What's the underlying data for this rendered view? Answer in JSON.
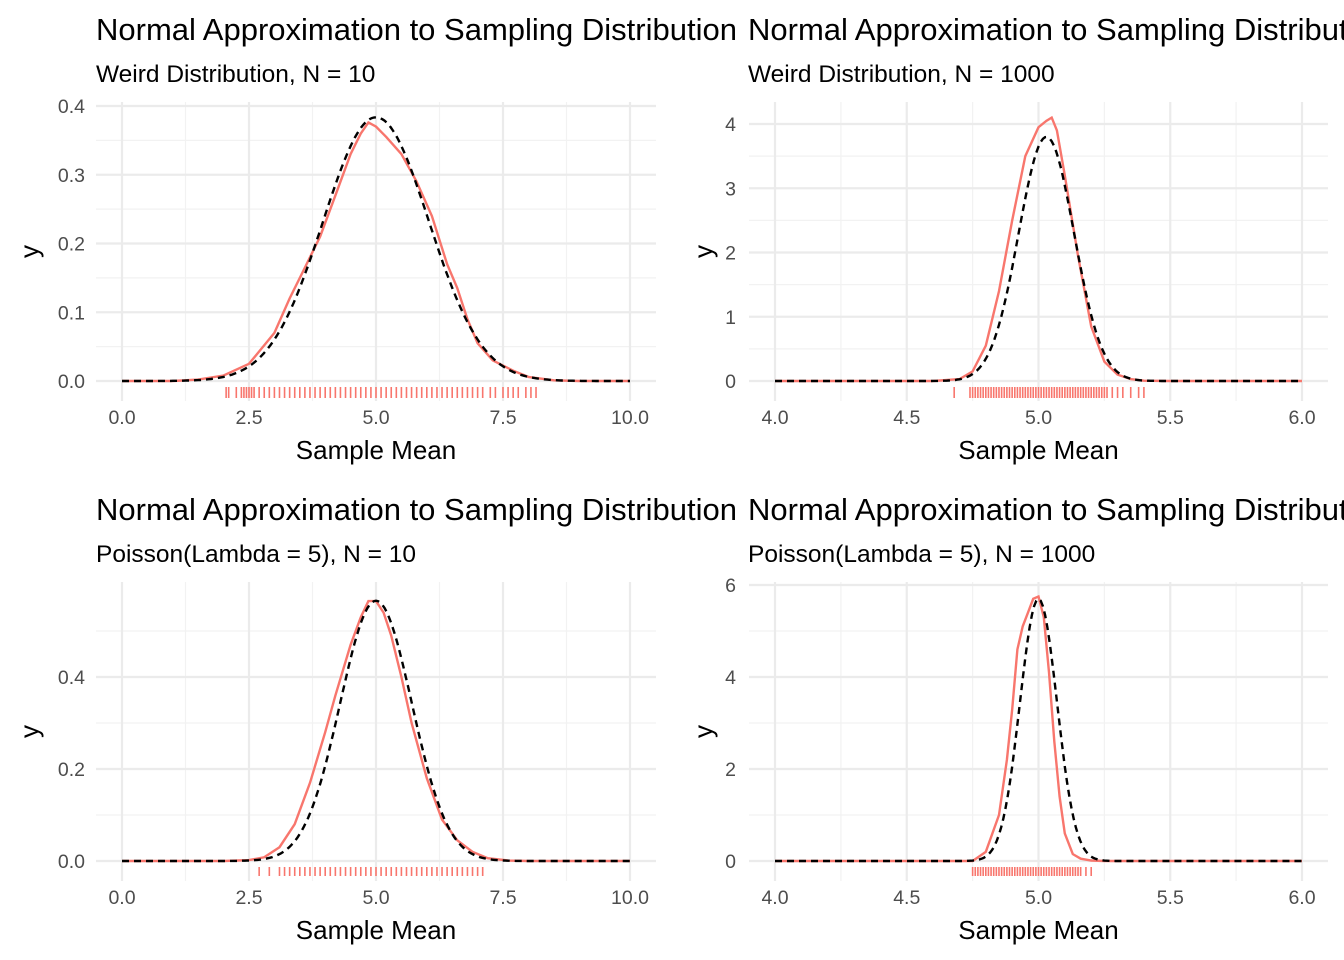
{
  "colors": {
    "kde": "#f8766d",
    "normal": "#000000",
    "grid": "#ebebeb",
    "tick_text": "#4d4d4d"
  },
  "chart_data": [
    {
      "type": "line",
      "title": "Normal Approximation to Sampling Distribution",
      "subtitle": "Weird Distribution, N = 10",
      "xlabel": "Sample Mean",
      "ylabel": "y",
      "xlim": [
        0,
        10
      ],
      "ylim": [
        0,
        0.4
      ],
      "xticks": [
        0,
        2.5,
        5,
        7.5,
        10
      ],
      "xtick_labels": [
        "0.0",
        "2.5",
        "5.0",
        "7.5",
        "10.0"
      ],
      "yticks": [
        0,
        0.1,
        0.2,
        0.3,
        0.4
      ],
      "ytick_labels": [
        "0.0",
        "0.1",
        "0.2",
        "0.3",
        "0.4"
      ],
      "grid": true,
      "series": [
        {
          "style": "solid",
          "color": "#f8766d",
          "x": [
            0,
            1.0,
            1.5,
            2.0,
            2.5,
            3.0,
            3.3,
            3.6,
            3.9,
            4.2,
            4.5,
            4.7,
            4.85,
            5.0,
            5.2,
            5.5,
            5.8,
            6.1,
            6.4,
            6.6,
            6.8,
            7.0,
            7.3,
            7.7,
            8.0,
            8.5,
            9.0,
            10.0
          ],
          "y": [
            0,
            0,
            0.002,
            0.008,
            0.025,
            0.07,
            0.12,
            0.165,
            0.21,
            0.27,
            0.33,
            0.36,
            0.376,
            0.37,
            0.355,
            0.33,
            0.29,
            0.24,
            0.17,
            0.135,
            0.09,
            0.055,
            0.03,
            0.015,
            0.006,
            0.001,
            0,
            0
          ]
        },
        {
          "style": "dashed",
          "color": "#000000",
          "type": "normal",
          "mean": 5.0,
          "sd": 1.04,
          "x": [
            0,
            10
          ],
          "y": [
            0,
            0
          ]
        }
      ],
      "rug": {
        "color": "#f8766d",
        "x": [
          2.05,
          2.1,
          2.25,
          2.35,
          2.4,
          2.45,
          2.5,
          2.55,
          2.6,
          2.7,
          2.8,
          2.9,
          3.0,
          3.1,
          3.2,
          3.3,
          3.4,
          3.5,
          3.6,
          3.7,
          3.8,
          3.9,
          4.0,
          4.1,
          4.2,
          4.3,
          4.4,
          4.5,
          4.6,
          4.7,
          4.8,
          4.9,
          5.0,
          5.1,
          5.2,
          5.3,
          5.4,
          5.5,
          5.6,
          5.7,
          5.8,
          5.9,
          6.0,
          6.1,
          6.2,
          6.3,
          6.4,
          6.5,
          6.6,
          6.7,
          6.8,
          6.9,
          7.0,
          7.1,
          7.25,
          7.35,
          7.5,
          7.6,
          7.7,
          7.8,
          7.95,
          8.05,
          8.15
        ]
      }
    },
    {
      "type": "line",
      "title": "Normal Approximation to Sampling Distribution",
      "subtitle": "Weird Distribution, N = 1000",
      "xlabel": "Sample Mean",
      "ylabel": "y",
      "xlim": [
        4.0,
        6.0
      ],
      "ylim": [
        0,
        4
      ],
      "xticks": [
        4.0,
        4.5,
        5.0,
        5.5,
        6.0
      ],
      "xtick_labels": [
        "4.0",
        "4.5",
        "5.0",
        "5.5",
        "6.0"
      ],
      "yticks": [
        0,
        1,
        2,
        3,
        4
      ],
      "ytick_labels": [
        "0",
        "1",
        "2",
        "3",
        "4"
      ],
      "grid": true,
      "series": [
        {
          "style": "solid",
          "color": "#f8766d",
          "x": [
            4.0,
            4.6,
            4.7,
            4.75,
            4.8,
            4.85,
            4.9,
            4.95,
            5.0,
            5.03,
            5.05,
            5.07,
            5.1,
            5.15,
            5.2,
            5.25,
            5.3,
            5.35,
            5.4,
            5.5,
            6.0
          ],
          "y": [
            0,
            0,
            0.03,
            0.15,
            0.55,
            1.4,
            2.5,
            3.5,
            3.95,
            4.05,
            4.1,
            3.9,
            3.2,
            1.95,
            0.85,
            0.3,
            0.1,
            0.03,
            0.005,
            0,
            0
          ]
        },
        {
          "style": "dashed",
          "color": "#000000",
          "type": "normal",
          "mean": 5.03,
          "sd": 0.105,
          "x": [
            4.0,
            6.0
          ],
          "y": [
            0,
            0
          ]
        }
      ],
      "rug": {
        "color": "#f8766d",
        "x": [
          4.68,
          4.74,
          4.75,
          4.76,
          4.77,
          4.78,
          4.79,
          4.8,
          4.81,
          4.82,
          4.83,
          4.84,
          4.85,
          4.86,
          4.87,
          4.88,
          4.89,
          4.9,
          4.91,
          4.92,
          4.93,
          4.94,
          4.95,
          4.96,
          4.97,
          4.98,
          4.99,
          5.0,
          5.01,
          5.02,
          5.03,
          5.04,
          5.05,
          5.06,
          5.07,
          5.08,
          5.09,
          5.1,
          5.11,
          5.12,
          5.13,
          5.14,
          5.15,
          5.16,
          5.17,
          5.18,
          5.19,
          5.2,
          5.21,
          5.22,
          5.23,
          5.24,
          5.25,
          5.26,
          5.28,
          5.3,
          5.32,
          5.35,
          5.38,
          5.4
        ]
      }
    },
    {
      "type": "line",
      "title": "Normal Approximation to Sampling Distribution",
      "subtitle": "Poisson(Lambda = 5), N = 10",
      "xlabel": "Sample Mean",
      "ylabel": "y",
      "xlim": [
        0,
        10
      ],
      "ylim": [
        0,
        0.6
      ],
      "xticks": [
        0,
        2.5,
        5,
        7.5,
        10
      ],
      "xtick_labels": [
        "0.0",
        "2.5",
        "5.0",
        "7.5",
        "10.0"
      ],
      "yticks": [
        0,
        0.2,
        0.4
      ],
      "ytick_labels": [
        "0.0",
        "0.2",
        "0.4"
      ],
      "grid": true,
      "series": [
        {
          "style": "solid",
          "color": "#f8766d",
          "x": [
            0,
            2.0,
            2.5,
            2.8,
            3.1,
            3.4,
            3.7,
            4.0,
            4.2,
            4.5,
            4.7,
            4.85,
            5.0,
            5.15,
            5.3,
            5.5,
            5.7,
            6.0,
            6.3,
            6.6,
            6.9,
            7.2,
            7.6,
            8.0,
            10.0
          ],
          "y": [
            0,
            0,
            0.002,
            0.008,
            0.03,
            0.08,
            0.17,
            0.28,
            0.36,
            0.47,
            0.53,
            0.565,
            0.565,
            0.54,
            0.49,
            0.4,
            0.3,
            0.18,
            0.09,
            0.045,
            0.02,
            0.006,
            0.001,
            0,
            0
          ]
        },
        {
          "style": "dashed",
          "color": "#000000",
          "type": "normal",
          "mean": 5.0,
          "sd": 0.705,
          "x": [
            0,
            10
          ],
          "y": [
            0,
            0
          ]
        }
      ],
      "rug": {
        "color": "#f8766d",
        "x": [
          2.7,
          2.9,
          3.1,
          3.2,
          3.3,
          3.4,
          3.5,
          3.6,
          3.7,
          3.8,
          3.9,
          4.0,
          4.1,
          4.2,
          4.3,
          4.4,
          4.5,
          4.6,
          4.7,
          4.8,
          4.9,
          5.0,
          5.1,
          5.2,
          5.3,
          5.4,
          5.5,
          5.6,
          5.7,
          5.8,
          5.9,
          6.0,
          6.1,
          6.2,
          6.3,
          6.4,
          6.5,
          6.6,
          6.7,
          6.8,
          6.9,
          7.0,
          7.1
        ]
      }
    },
    {
      "type": "line",
      "title": "Normal Approximation to Sampling Distribution",
      "subtitle": "Poisson(Lambda = 5), N = 1000",
      "xlabel": "Sample Mean",
      "ylabel": "y",
      "xlim": [
        4.0,
        6.0
      ],
      "ylim": [
        0,
        6
      ],
      "xticks": [
        4.0,
        4.5,
        5.0,
        5.5,
        6.0
      ],
      "xtick_labels": [
        "4.0",
        "4.5",
        "5.0",
        "5.5",
        "6.0"
      ],
      "yticks": [
        0,
        2,
        4,
        6
      ],
      "ytick_labels": [
        "0",
        "2",
        "4",
        "6"
      ],
      "grid": true,
      "series": [
        {
          "style": "solid",
          "color": "#f8766d",
          "x": [
            4.0,
            4.75,
            4.8,
            4.85,
            4.88,
            4.9,
            4.92,
            4.94,
            4.96,
            4.98,
            5.0,
            5.02,
            5.04,
            5.06,
            5.08,
            5.1,
            5.13,
            5.16,
            5.2,
            5.25,
            6.0
          ],
          "y": [
            0,
            0,
            0.2,
            1.0,
            2.2,
            3.3,
            4.6,
            5.1,
            5.4,
            5.7,
            5.75,
            5.3,
            4.1,
            2.6,
            1.4,
            0.6,
            0.15,
            0.05,
            0.01,
            0,
            0
          ]
        },
        {
          "style": "dashed",
          "color": "#000000",
          "type": "normal",
          "mean": 5.0,
          "sd": 0.07,
          "x": [
            4.0,
            6.0
          ],
          "y": [
            0,
            0
          ]
        }
      ],
      "rug": {
        "color": "#f8766d",
        "x": [
          4.75,
          4.76,
          4.77,
          4.78,
          4.79,
          4.8,
          4.81,
          4.82,
          4.83,
          4.84,
          4.85,
          4.86,
          4.87,
          4.88,
          4.89,
          4.9,
          4.91,
          4.92,
          4.93,
          4.94,
          4.95,
          4.96,
          4.97,
          4.98,
          4.99,
          5.0,
          5.01,
          5.02,
          5.03,
          5.04,
          5.05,
          5.06,
          5.07,
          5.08,
          5.09,
          5.1,
          5.11,
          5.12,
          5.13,
          5.14,
          5.15,
          5.16,
          5.18,
          5.2
        ]
      }
    }
  ]
}
